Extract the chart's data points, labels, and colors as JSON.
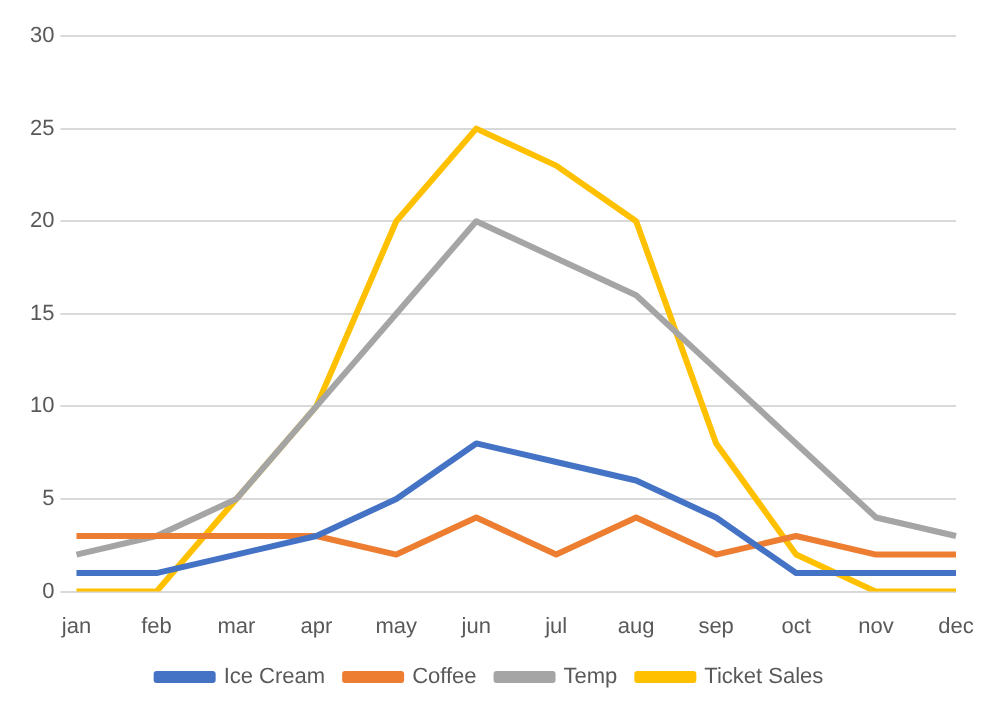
{
  "chart_data": {
    "type": "line",
    "categories": [
      "jan",
      "feb",
      "mar",
      "apr",
      "may",
      "jun",
      "jul",
      "aug",
      "sep",
      "oct",
      "nov",
      "dec"
    ],
    "series": [
      {
        "name": "Ice Cream",
        "color": "#4472c4",
        "values": [
          1,
          1,
          2,
          3,
          5,
          8,
          7,
          6,
          4,
          1,
          1,
          1
        ]
      },
      {
        "name": "Coffee",
        "color": "#ed7d31",
        "values": [
          3,
          3,
          3,
          3,
          2,
          4,
          2,
          4,
          2,
          3,
          2,
          2
        ]
      },
      {
        "name": "Temp",
        "color": "#a5a5a5",
        "values": [
          2,
          3,
          5,
          10,
          15,
          20,
          18,
          16,
          12,
          8,
          4,
          3
        ]
      },
      {
        "name": "Ticket Sales",
        "color": "#ffc000",
        "values": [
          0,
          0,
          5,
          10,
          20,
          25,
          23,
          20,
          8,
          2,
          0,
          0
        ]
      }
    ],
    "ylim": [
      0,
      30
    ],
    "yticks": [
      0,
      5,
      10,
      15,
      20,
      25,
      30
    ],
    "grid": "y",
    "legend": "bottom",
    "marker": "none",
    "line_style": "solid"
  }
}
